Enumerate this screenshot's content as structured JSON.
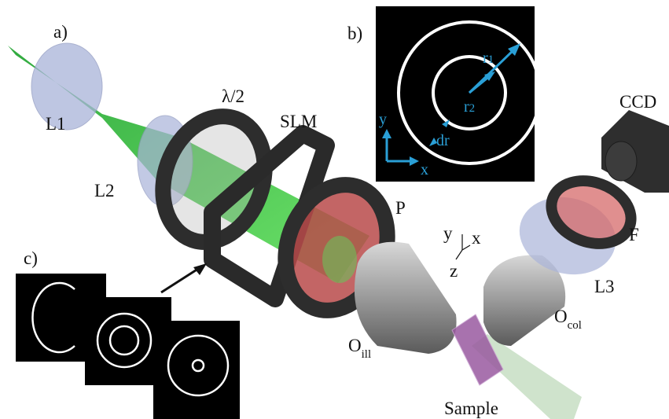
{
  "panels": {
    "a": "a)",
    "b": "b)",
    "c": "c)"
  },
  "components": [
    {
      "label": "L1"
    },
    {
      "label": "L2"
    },
    {
      "label": "λ/2"
    },
    {
      "label": "SLM"
    },
    {
      "label": "P"
    },
    {
      "label": "O",
      "sub": "ill"
    },
    {
      "label": "O",
      "sub": "col"
    },
    {
      "label": "Sample"
    },
    {
      "label": "L3"
    },
    {
      "label": "F"
    },
    {
      "label": "CCD"
    }
  ],
  "axes": {
    "y": "y",
    "x": "x",
    "z": "z"
  },
  "inset": {
    "r1": {
      "label": "r",
      "sub": "1"
    },
    "r2": {
      "label": "r",
      "sub": "2"
    },
    "dr": "dr",
    "y": "y",
    "x": "x"
  }
}
